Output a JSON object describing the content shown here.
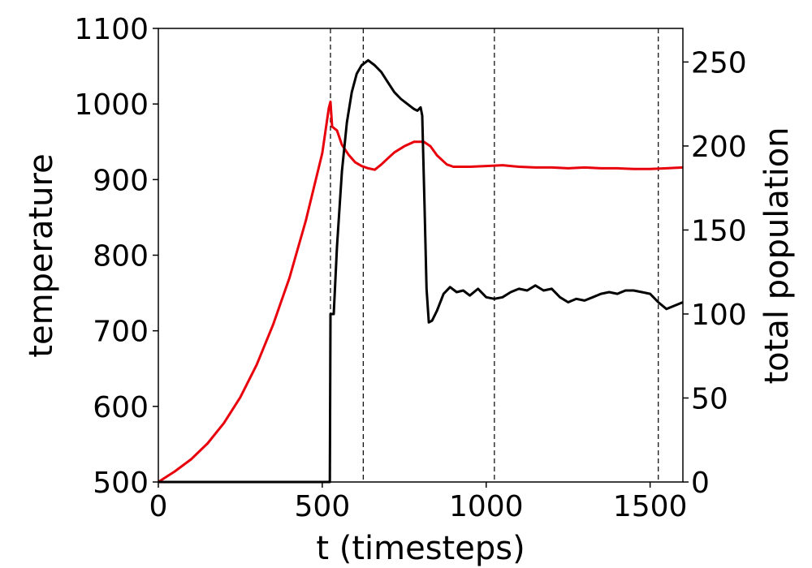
{
  "chart_data": {
    "type": "line",
    "xlabel": "t (timesteps)",
    "ylabel": "temperature",
    "y2label": "total population",
    "xlim": [
      0,
      1600
    ],
    "ylim": [
      500,
      1100
    ],
    "y2lim": [
      0,
      270
    ],
    "x_ticks": [
      "0",
      "500",
      "1000",
      "1500"
    ],
    "x_tick_values": [
      0,
      500,
      1000,
      1500
    ],
    "y_ticks": [
      "500",
      "600",
      "700",
      "800",
      "900",
      "1000",
      "1100"
    ],
    "y_tick_values": [
      500,
      600,
      700,
      800,
      900,
      1000,
      1100
    ],
    "y2_ticks": [
      "0",
      "50",
      "100",
      "150",
      "200",
      "250"
    ],
    "y2_tick_values": [
      0,
      50,
      100,
      150,
      200,
      250
    ],
    "vlines_x": [
      525,
      625,
      1025,
      1525
    ],
    "grid": false,
    "series": [
      {
        "axis": "left",
        "color": "#e8000b",
        "points": [
          [
            0,
            500
          ],
          [
            50,
            514
          ],
          [
            100,
            530
          ],
          [
            150,
            551
          ],
          [
            200,
            578
          ],
          [
            250,
            612
          ],
          [
            300,
            655
          ],
          [
            350,
            708
          ],
          [
            400,
            770
          ],
          [
            450,
            846
          ],
          [
            500,
            935
          ],
          [
            520,
            995
          ],
          [
            525,
            1003
          ],
          [
            530,
            970
          ],
          [
            545,
            965
          ],
          [
            560,
            946
          ],
          [
            580,
            933
          ],
          [
            600,
            923
          ],
          [
            620,
            918
          ],
          [
            640,
            915
          ],
          [
            660,
            913
          ],
          [
            680,
            920
          ],
          [
            700,
            928
          ],
          [
            720,
            936
          ],
          [
            750,
            944
          ],
          [
            780,
            950
          ],
          [
            810,
            950
          ],
          [
            830,
            944
          ],
          [
            850,
            932
          ],
          [
            880,
            920
          ],
          [
            900,
            917
          ],
          [
            950,
            917
          ],
          [
            1000,
            918
          ],
          [
            1050,
            919
          ],
          [
            1100,
            917
          ],
          [
            1150,
            916
          ],
          [
            1200,
            916
          ],
          [
            1250,
            915
          ],
          [
            1300,
            916
          ],
          [
            1350,
            915
          ],
          [
            1400,
            915
          ],
          [
            1450,
            914
          ],
          [
            1500,
            914
          ],
          [
            1550,
            915
          ],
          [
            1600,
            916
          ]
        ]
      },
      {
        "axis": "right",
        "color": "#000000",
        "points": [
          [
            0,
            0
          ],
          [
            520,
            0
          ],
          [
            523,
            0
          ],
          [
            525,
            100
          ],
          [
            535,
            100
          ],
          [
            545,
            140
          ],
          [
            560,
            185
          ],
          [
            575,
            214
          ],
          [
            590,
            232
          ],
          [
            605,
            243
          ],
          [
            620,
            248
          ],
          [
            640,
            251
          ],
          [
            660,
            248
          ],
          [
            680,
            244
          ],
          [
            700,
            238
          ],
          [
            720,
            232
          ],
          [
            740,
            228
          ],
          [
            760,
            225
          ],
          [
            780,
            222
          ],
          [
            790,
            221
          ],
          [
            800,
            223
          ],
          [
            805,
            218
          ],
          [
            812,
            165
          ],
          [
            818,
            115
          ],
          [
            825,
            95
          ],
          [
            835,
            96
          ],
          [
            850,
            102
          ],
          [
            870,
            112
          ],
          [
            890,
            116
          ],
          [
            910,
            113
          ],
          [
            930,
            114
          ],
          [
            950,
            111
          ],
          [
            975,
            115
          ],
          [
            1000,
            110
          ],
          [
            1025,
            109
          ],
          [
            1050,
            110
          ],
          [
            1075,
            113
          ],
          [
            1100,
            115
          ],
          [
            1125,
            114
          ],
          [
            1150,
            117
          ],
          [
            1175,
            114
          ],
          [
            1200,
            115
          ],
          [
            1225,
            110
          ],
          [
            1250,
            107
          ],
          [
            1275,
            109
          ],
          [
            1300,
            108
          ],
          [
            1325,
            110
          ],
          [
            1350,
            112
          ],
          [
            1375,
            113
          ],
          [
            1400,
            112
          ],
          [
            1425,
            114
          ],
          [
            1450,
            114
          ],
          [
            1475,
            113
          ],
          [
            1500,
            112
          ],
          [
            1525,
            107
          ],
          [
            1550,
            103
          ],
          [
            1575,
            105
          ],
          [
            1600,
            107
          ]
        ]
      }
    ]
  }
}
